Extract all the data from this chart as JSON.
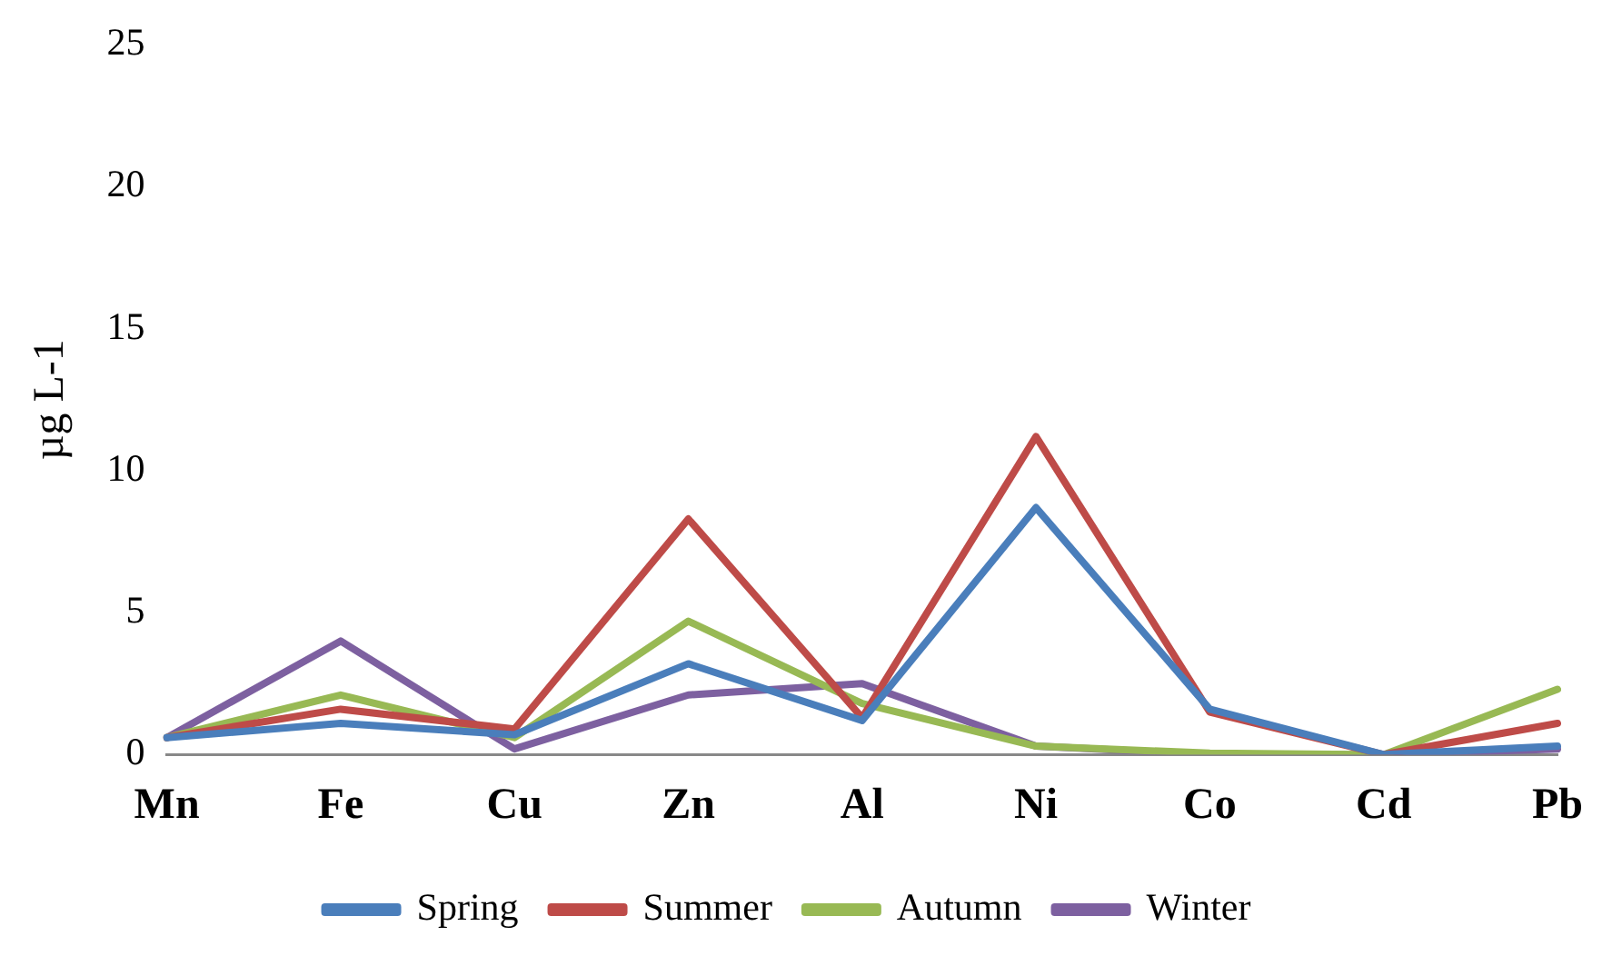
{
  "chart_data": {
    "type": "line",
    "ylabel": "µg L-1",
    "categories": [
      "Mn",
      "Fe",
      "Cu",
      "Zn",
      "Al",
      "Ni",
      "Co",
      "Cd",
      "Pb"
    ],
    "series": [
      {
        "name": "Spring",
        "color": "#4a7ebb",
        "values": [
          0.6,
          1.1,
          0.7,
          3.2,
          1.2,
          8.7,
          1.6,
          0,
          0.3
        ]
      },
      {
        "name": "Summer",
        "color": "#be4b48",
        "values": [
          0.6,
          1.6,
          0.9,
          8.3,
          1.3,
          11.2,
          1.5,
          0,
          1.1
        ]
      },
      {
        "name": "Autumn",
        "color": "#98b954",
        "values": [
          0.6,
          2.1,
          0.6,
          4.7,
          1.8,
          0.3,
          0.05,
          0,
          2.3
        ]
      },
      {
        "name": "Winter",
        "color": "#7d60a0",
        "values": [
          0.6,
          4.0,
          0.2,
          2.1,
          2.5,
          0.3,
          0,
          0,
          0.2
        ]
      }
    ],
    "ylim": [
      0,
      25
    ],
    "yticks": [
      0,
      5,
      10,
      15,
      20,
      25
    ],
    "grid": false,
    "legend": "bottom",
    "marker": "none",
    "line_style": "solid"
  }
}
